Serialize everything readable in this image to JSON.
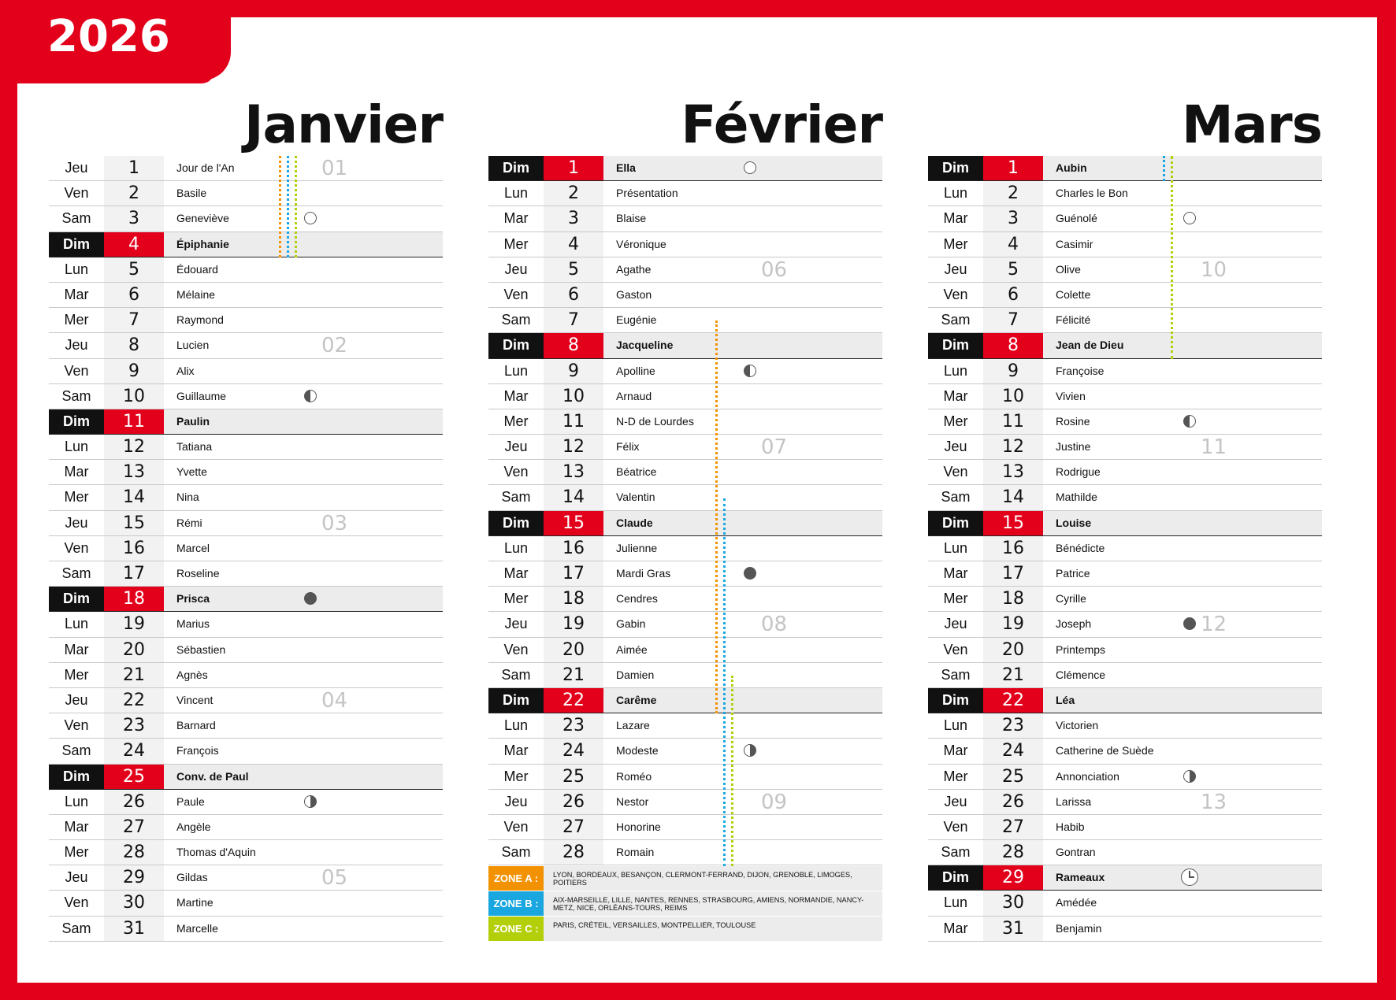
{
  "year": "2026",
  "colors": {
    "red": "#e3001b",
    "black": "#111111",
    "zone_a": "#f39200",
    "zone_b": "#1aa7e0",
    "zone_c": "#b3cf0a"
  },
  "months": [
    {
      "name": "Janvier",
      "days": [
        {
          "wd": "Jeu",
          "d": "1",
          "saint": "Jour de l'An",
          "week": "01"
        },
        {
          "wd": "Ven",
          "d": "2",
          "saint": "Basile"
        },
        {
          "wd": "Sam",
          "d": "3",
          "saint": "Geneviève",
          "moon": "full"
        },
        {
          "wd": "Dim",
          "d": "4",
          "saint": "Épiphanie"
        },
        {
          "wd": "Lun",
          "d": "5",
          "saint": "Édouard"
        },
        {
          "wd": "Mar",
          "d": "6",
          "saint": "Mélaine"
        },
        {
          "wd": "Mer",
          "d": "7",
          "saint": "Raymond"
        },
        {
          "wd": "Jeu",
          "d": "8",
          "saint": "Lucien",
          "week": "02"
        },
        {
          "wd": "Ven",
          "d": "9",
          "saint": "Alix"
        },
        {
          "wd": "Sam",
          "d": "10",
          "saint": "Guillaume",
          "moon": "last"
        },
        {
          "wd": "Dim",
          "d": "11",
          "saint": "Paulin"
        },
        {
          "wd": "Lun",
          "d": "12",
          "saint": "Tatiana"
        },
        {
          "wd": "Mar",
          "d": "13",
          "saint": "Yvette"
        },
        {
          "wd": "Mer",
          "d": "14",
          "saint": "Nina"
        },
        {
          "wd": "Jeu",
          "d": "15",
          "saint": "Rémi",
          "week": "03"
        },
        {
          "wd": "Ven",
          "d": "16",
          "saint": "Marcel"
        },
        {
          "wd": "Sam",
          "d": "17",
          "saint": "Roseline"
        },
        {
          "wd": "Dim",
          "d": "18",
          "saint": "Prisca",
          "moon": "new"
        },
        {
          "wd": "Lun",
          "d": "19",
          "saint": "Marius"
        },
        {
          "wd": "Mar",
          "d": "20",
          "saint": "Sébastien"
        },
        {
          "wd": "Mer",
          "d": "21",
          "saint": "Agnès"
        },
        {
          "wd": "Jeu",
          "d": "22",
          "saint": "Vincent",
          "week": "04"
        },
        {
          "wd": "Ven",
          "d": "23",
          "saint": "Barnard"
        },
        {
          "wd": "Sam",
          "d": "24",
          "saint": "François"
        },
        {
          "wd": "Dim",
          "d": "25",
          "saint": "Conv. de Paul"
        },
        {
          "wd": "Lun",
          "d": "26",
          "saint": "Paule",
          "moon": "first"
        },
        {
          "wd": "Mar",
          "d": "27",
          "saint": "Angèle"
        },
        {
          "wd": "Mer",
          "d": "28",
          "saint": "Thomas d'Aquin"
        },
        {
          "wd": "Jeu",
          "d": "29",
          "saint": "Gildas",
          "week": "05"
        },
        {
          "wd": "Ven",
          "d": "30",
          "saint": "Martine"
        },
        {
          "wd": "Sam",
          "d": "31",
          "saint": "Marcelle"
        }
      ]
    },
    {
      "name": "Février",
      "days": [
        {
          "wd": "Dim",
          "d": "1",
          "saint": "Ella",
          "moon": "full"
        },
        {
          "wd": "Lun",
          "d": "2",
          "saint": "Présentation"
        },
        {
          "wd": "Mar",
          "d": "3",
          "saint": "Blaise"
        },
        {
          "wd": "Mer",
          "d": "4",
          "saint": "Véronique"
        },
        {
          "wd": "Jeu",
          "d": "5",
          "saint": "Agathe",
          "week": "06"
        },
        {
          "wd": "Ven",
          "d": "6",
          "saint": "Gaston"
        },
        {
          "wd": "Sam",
          "d": "7",
          "saint": "Eugénie"
        },
        {
          "wd": "Dim",
          "d": "8",
          "saint": "Jacqueline"
        },
        {
          "wd": "Lun",
          "d": "9",
          "saint": "Apolline",
          "moon": "last"
        },
        {
          "wd": "Mar",
          "d": "10",
          "saint": "Arnaud"
        },
        {
          "wd": "Mer",
          "d": "11",
          "saint": "N-D de Lourdes"
        },
        {
          "wd": "Jeu",
          "d": "12",
          "saint": "Félix",
          "week": "07"
        },
        {
          "wd": "Ven",
          "d": "13",
          "saint": "Béatrice"
        },
        {
          "wd": "Sam",
          "d": "14",
          "saint": "Valentin"
        },
        {
          "wd": "Dim",
          "d": "15",
          "saint": "Claude"
        },
        {
          "wd": "Lun",
          "d": "16",
          "saint": "Julienne"
        },
        {
          "wd": "Mar",
          "d": "17",
          "saint": "Mardi Gras",
          "moon": "new"
        },
        {
          "wd": "Mer",
          "d": "18",
          "saint": "Cendres"
        },
        {
          "wd": "Jeu",
          "d": "19",
          "saint": "Gabin",
          "week": "08"
        },
        {
          "wd": "Ven",
          "d": "20",
          "saint": "Aimée"
        },
        {
          "wd": "Sam",
          "d": "21",
          "saint": "Damien"
        },
        {
          "wd": "Dim",
          "d": "22",
          "saint": "Carême"
        },
        {
          "wd": "Lun",
          "d": "23",
          "saint": "Lazare"
        },
        {
          "wd": "Mar",
          "d": "24",
          "saint": "Modeste",
          "moon": "first"
        },
        {
          "wd": "Mer",
          "d": "25",
          "saint": "Roméo"
        },
        {
          "wd": "Jeu",
          "d": "26",
          "saint": "Nestor",
          "week": "09"
        },
        {
          "wd": "Ven",
          "d": "27",
          "saint": "Honorine"
        },
        {
          "wd": "Sam",
          "d": "28",
          "saint": "Romain"
        }
      ],
      "zones": [
        {
          "label": "ZONE A :",
          "color": "#f39200",
          "cities": "LYON, BORDEAUX, BESANÇON, CLERMONT-FERRAND, DIJON, GRENOBLE, LIMOGES, POITIERS"
        },
        {
          "label": "ZONE B :",
          "color": "#1aa7e0",
          "cities": "AIX-MARSEILLE, LILLE, NANTES, RENNES, STRASBOURG, AMIENS, NORMANDIE, NANCY-METZ, NICE, ORLÉANS-TOURS, REIMS"
        },
        {
          "label": "ZONE C :",
          "color": "#b3cf0a",
          "cities": "PARIS, CRÉTEIL, VERSAILLES, MONTPELLIER, TOULOUSE"
        }
      ]
    },
    {
      "name": "Mars",
      "days": [
        {
          "wd": "Dim",
          "d": "1",
          "saint": "Aubin"
        },
        {
          "wd": "Lun",
          "d": "2",
          "saint": "Charles le Bon"
        },
        {
          "wd": "Mar",
          "d": "3",
          "saint": "Guénolé",
          "moon": "full"
        },
        {
          "wd": "Mer",
          "d": "4",
          "saint": "Casimir"
        },
        {
          "wd": "Jeu",
          "d": "5",
          "saint": "Olive",
          "week": "10"
        },
        {
          "wd": "Ven",
          "d": "6",
          "saint": "Colette"
        },
        {
          "wd": "Sam",
          "d": "7",
          "saint": "Félicité"
        },
        {
          "wd": "Dim",
          "d": "8",
          "saint": "Jean de Dieu"
        },
        {
          "wd": "Lun",
          "d": "9",
          "saint": "Françoise"
        },
        {
          "wd": "Mar",
          "d": "10",
          "saint": "Vivien"
        },
        {
          "wd": "Mer",
          "d": "11",
          "saint": "Rosine",
          "moon": "last"
        },
        {
          "wd": "Jeu",
          "d": "12",
          "saint": "Justine",
          "week": "11"
        },
        {
          "wd": "Ven",
          "d": "13",
          "saint": "Rodrigue"
        },
        {
          "wd": "Sam",
          "d": "14",
          "saint": "Mathilde"
        },
        {
          "wd": "Dim",
          "d": "15",
          "saint": "Louise"
        },
        {
          "wd": "Lun",
          "d": "16",
          "saint": "Bénédicte"
        },
        {
          "wd": "Mar",
          "d": "17",
          "saint": "Patrice"
        },
        {
          "wd": "Mer",
          "d": "18",
          "saint": "Cyrille"
        },
        {
          "wd": "Jeu",
          "d": "19",
          "saint": "Joseph",
          "week": "12",
          "moon": "new"
        },
        {
          "wd": "Ven",
          "d": "20",
          "saint": "Printemps"
        },
        {
          "wd": "Sam",
          "d": "21",
          "saint": "Clémence"
        },
        {
          "wd": "Dim",
          "d": "22",
          "saint": "Léa"
        },
        {
          "wd": "Lun",
          "d": "23",
          "saint": "Victorien"
        },
        {
          "wd": "Mar",
          "d": "24",
          "saint": "Catherine de Suède"
        },
        {
          "wd": "Mer",
          "d": "25",
          "saint": "Annonciation",
          "moon": "first"
        },
        {
          "wd": "Jeu",
          "d": "26",
          "saint": "Larissa",
          "week": "13"
        },
        {
          "wd": "Ven",
          "d": "27",
          "saint": "Habib"
        },
        {
          "wd": "Sam",
          "d": "28",
          "saint": "Gontran"
        },
        {
          "wd": "Dim",
          "d": "29",
          "saint": "Rameaux",
          "moon": "clock"
        },
        {
          "wd": "Lun",
          "d": "30",
          "saint": "Amédée"
        },
        {
          "wd": "Mar",
          "d": "31",
          "saint": "Benjamin"
        }
      ]
    }
  ]
}
